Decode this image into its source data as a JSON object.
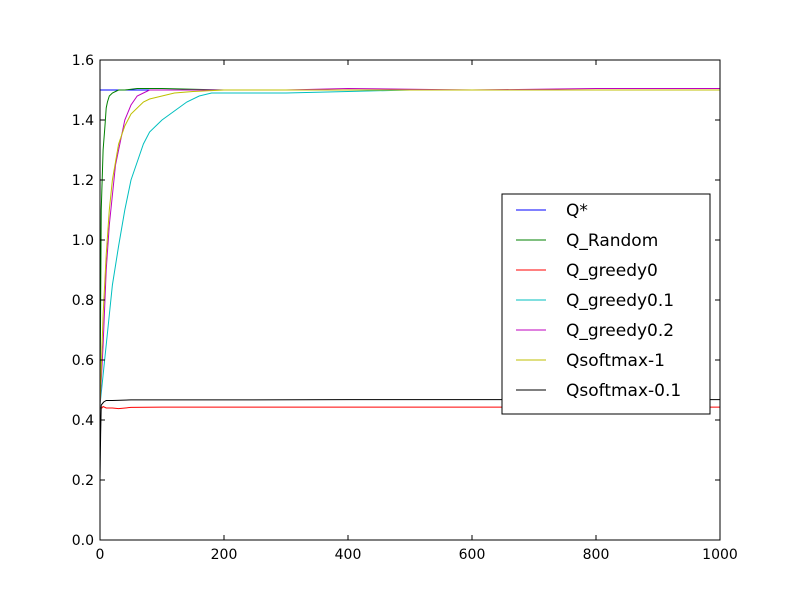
{
  "chart_data": {
    "type": "line",
    "xlim": [
      0,
      1000
    ],
    "ylim": [
      0.0,
      1.6
    ],
    "xticks": [
      "0",
      "200",
      "400",
      "600",
      "800",
      "1000"
    ],
    "yticks": [
      "0.0",
      "0.2",
      "0.4",
      "0.6",
      "0.8",
      "1.0",
      "1.2",
      "1.4",
      "1.6"
    ],
    "grid": false,
    "legend_position": "center-right",
    "series": [
      {
        "name": "Q*",
        "color": "#0000ff",
        "x": [
          0,
          1000
        ],
        "y": [
          1.5,
          1.5
        ]
      },
      {
        "name": "Q_Random",
        "color": "#008000",
        "x": [
          0,
          2,
          5,
          8,
          10,
          12,
          15,
          20,
          25,
          30,
          40,
          60,
          80,
          100,
          200,
          400,
          600,
          800,
          1000
        ],
        "y": [
          0.45,
          1.1,
          1.3,
          1.38,
          1.44,
          1.46,
          1.48,
          1.49,
          1.495,
          1.5,
          1.5,
          1.505,
          1.505,
          1.505,
          1.5,
          1.5,
          1.5,
          1.5,
          1.5
        ]
      },
      {
        "name": "Q_greedy0",
        "color": "#ff0000",
        "x": [
          0,
          3,
          5,
          10,
          20,
          30,
          50,
          100,
          200,
          400,
          600,
          800,
          1000
        ],
        "y": [
          0.44,
          0.44,
          0.445,
          0.44,
          0.44,
          0.438,
          0.442,
          0.443,
          0.443,
          0.443,
          0.443,
          0.443,
          0.443
        ]
      },
      {
        "name": "Q_greedy0.1",
        "color": "#00bfbf",
        "x": [
          0,
          5,
          10,
          15,
          20,
          30,
          40,
          50,
          60,
          70,
          80,
          90,
          100,
          120,
          140,
          160,
          180,
          200,
          250,
          300,
          400,
          500,
          600,
          700,
          800,
          900,
          1000
        ],
        "y": [
          0.45,
          0.55,
          0.65,
          0.75,
          0.85,
          0.98,
          1.1,
          1.2,
          1.26,
          1.32,
          1.36,
          1.38,
          1.4,
          1.43,
          1.46,
          1.48,
          1.49,
          1.49,
          1.49,
          1.49,
          1.495,
          1.5,
          1.5,
          1.5,
          1.5,
          1.5,
          1.5
        ]
      },
      {
        "name": "Q_greedy0.2",
        "color": "#bf00bf",
        "x": [
          0,
          5,
          10,
          15,
          20,
          25,
          30,
          40,
          50,
          60,
          70,
          80,
          100,
          150,
          200,
          300,
          400,
          600,
          800,
          1000
        ],
        "y": [
          0.45,
          0.65,
          0.9,
          1.05,
          1.15,
          1.25,
          1.3,
          1.4,
          1.45,
          1.48,
          1.49,
          1.5,
          1.5,
          1.5,
          1.5,
          1.5,
          1.505,
          1.5,
          1.505,
          1.505
        ]
      },
      {
        "name": "Qsoftmax-1",
        "color": "#bfbf00",
        "x": [
          0,
          5,
          10,
          15,
          20,
          30,
          40,
          50,
          60,
          70,
          80,
          100,
          120,
          150,
          200,
          300,
          400,
          600,
          800,
          1000
        ],
        "y": [
          0.45,
          0.75,
          0.95,
          1.1,
          1.2,
          1.32,
          1.38,
          1.42,
          1.44,
          1.46,
          1.47,
          1.48,
          1.49,
          1.495,
          1.5,
          1.5,
          1.5,
          1.5,
          1.5,
          1.5
        ]
      },
      {
        "name": "Qsoftmax-0.1",
        "color": "#000000",
        "x": [
          0,
          1,
          2,
          4,
          6,
          10,
          20,
          50,
          100,
          200,
          400,
          600,
          800,
          1000
        ],
        "y": [
          0.2,
          0.35,
          0.45,
          0.455,
          0.46,
          0.465,
          0.465,
          0.467,
          0.467,
          0.467,
          0.468,
          0.468,
          0.468,
          0.468
        ]
      }
    ]
  }
}
